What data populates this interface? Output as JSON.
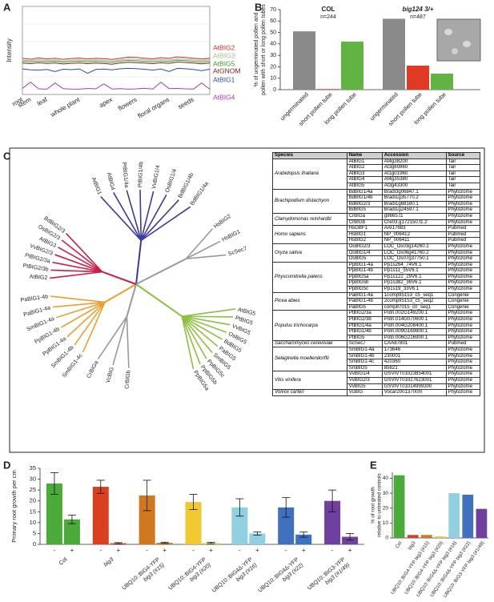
{
  "panel_labels": [
    "A",
    "B",
    "C",
    "D",
    "E"
  ],
  "chart_data": [
    {
      "type": "line",
      "ylabel": "Intensity",
      "ylim": [
        0,
        5000
      ],
      "categories": [
        "root",
        "stem",
        null,
        "leaf",
        null,
        null,
        null,
        "whole plant",
        null,
        null,
        null,
        "apex",
        null,
        null,
        "flowers",
        null,
        null,
        null,
        "floral organs",
        null,
        null,
        "seeds",
        null,
        null
      ],
      "series": [
        {
          "name": "AtBIG2",
          "color": "#d42a2a",
          "values": [
            2050,
            2000,
            2080,
            2020,
            2060,
            1990,
            2040,
            2070,
            2010,
            2050,
            2030,
            1980,
            2060,
            2120,
            2100,
            2060,
            2020,
            2090,
            2050,
            2130,
            2100,
            2060,
            2010,
            2060
          ]
        },
        {
          "name": "AtBIG3",
          "color": "#a8b890",
          "values": [
            1950,
            1920,
            1990,
            1930,
            1960,
            1900,
            1950,
            1970,
            1920,
            1960,
            1940,
            1890,
            1970,
            2010,
            1990,
            1960,
            1930,
            1990,
            1950,
            2020,
            2000,
            1960,
            1920,
            1970
          ]
        },
        {
          "name": "AtBIG5",
          "color": "#3a9a2a",
          "values": [
            1880,
            1850,
            1900,
            1860,
            1890,
            1830,
            1870,
            1890,
            1850,
            1880,
            1860,
            1820,
            1890,
            1930,
            1910,
            1880,
            1850,
            1900,
            1870,
            1940,
            1920,
            1880,
            1840,
            1880
          ]
        },
        {
          "name": "AtGNOM",
          "color": "#8a1a1a",
          "values": [
            1780,
            1750,
            1800,
            1760,
            1790,
            1730,
            1770,
            1790,
            1750,
            1780,
            1760,
            1720,
            1790,
            1830,
            1810,
            1780,
            1750,
            1800,
            1770,
            1840,
            1820,
            1780,
            1740,
            1780
          ]
        },
        {
          "name": "AtBIG1",
          "color": "#2a48c0",
          "values": [
            1450,
            1400,
            1380,
            1420,
            1300,
            1430,
            1410,
            1450,
            1200,
            1420,
            1440,
            1400,
            1460,
            1480,
            1470,
            1430,
            1380,
            1450,
            1300,
            1480,
            1460,
            1420,
            1350,
            1430
          ]
        },
        {
          "name": "AtBIG4",
          "color": "#a040a8",
          "values": [
            350,
            700,
            320,
            300,
            650,
            330,
            310,
            300,
            340,
            320,
            600,
            310,
            330,
            300,
            320,
            350,
            300,
            700,
            330,
            340,
            320,
            310,
            650,
            300
          ]
        }
      ]
    },
    {
      "type": "bar",
      "ylabel": [
        "% of ungerminated pollen and",
        "pollen with short or long pollen tubes"
      ],
      "ylim": [
        0,
        70
      ],
      "yticks": [
        0,
        10,
        20,
        30,
        40,
        50,
        60,
        70
      ],
      "categories": [
        "ungerminated",
        "short pollen tube",
        "long pollen tube"
      ],
      "colors": [
        "#8a8a8a",
        "#e03a24",
        "#62b442"
      ],
      "series": [
        {
          "name": "COL",
          "note": "n=244",
          "values": [
            51,
            0.5,
            42
          ]
        },
        {
          "name": "big124 3/+",
          "note": "n=487",
          "values": [
            62,
            21,
            14
          ]
        }
      ]
    },
    {
      "type": "bar",
      "ylabel": "Primary root growth per cm",
      "ylim": [
        0,
        35
      ],
      "yticks": [
        0,
        5,
        10,
        15,
        20,
        25,
        30,
        35
      ],
      "categories": [
        [
          "Col"
        ],
        [
          "big3"
        ],
        [
          "UBQ10::BIG4-YFP",
          "big3 (#15)"
        ],
        [
          "UBQ10::BIG4-YFP",
          "big3 (#20)"
        ],
        [
          "UBQ10::BIG4Δ-YFP",
          "big3 (#16)"
        ],
        [
          "UBQ10::BIG4Δ-YFP",
          "big3 (#22)"
        ],
        [
          "UBQ10::BIG3-YFP",
          "big3 (#1/49)"
        ]
      ],
      "colors": [
        "#4aaa3a",
        "#d84020",
        "#d07820",
        "#f0c830",
        "#90d0e0",
        "#4070c0",
        "#7040a0"
      ],
      "series": [
        {
          "name": "-",
          "values": [
            28,
            26.5,
            22.5,
            19.5,
            17,
            17,
            20
          ],
          "errors": [
            5,
            3,
            7,
            3.5,
            4,
            4.5,
            5
          ]
        },
        {
          "name": "+",
          "values": [
            11.5,
            0.5,
            0.7,
            0.6,
            5,
            4.5,
            3.5
          ],
          "errors": [
            2,
            0.3,
            0.3,
            0.3,
            0.7,
            1.2,
            1.5
          ]
        }
      ]
    },
    {
      "type": "bar",
      "ylabel": [
        "% of root growth",
        "relative to untreated controls"
      ],
      "ylim": [
        0,
        44
      ],
      "yticks": [
        0,
        10,
        20,
        30,
        40
      ],
      "categories": [
        "Col",
        "big3",
        "UBQ10::BIG4-YFP big3 (#15)",
        "UBQ10::BIG4-YFP big3 (#20)",
        "UBQ10::BIG4Δ-YFP big3 (#16)",
        "UBQ10::BIG4Δ-YFP big3 (#22)",
        "UBQ10::BIG3-YFP big3 (#1/49)"
      ],
      "colors": [
        "#4aaa3a",
        "#d84020",
        "#d07820",
        "#f0c830",
        "#90d0e0",
        "#4070c0",
        "#7040a0"
      ],
      "values": [
        42,
        2,
        2,
        1,
        30,
        29,
        19.5
      ]
    }
  ],
  "tree": {
    "clades": [
      {
        "color": "#3a3aa0",
        "leaves": [
          "AtBIG1",
          "AtBIG4",
          "PtBIG1/4a",
          "PtBIG1/4b",
          "VvBIG1/4",
          "OsBIG1/4",
          "BdBIG1/4b",
          "BdBIG1/4a"
        ]
      },
      {
        "color": "#999999",
        "leaves": [
          "HsBIG2",
          "HsBIG1",
          "ScSec7"
        ]
      },
      {
        "color": "#8cc040",
        "leaves": [
          "AtBIG5",
          "PtBIG5",
          "VvBIG5",
          "OsBIG5",
          "BdBIG5",
          "PaBIG5",
          "SmBIG5",
          "PpBIG5c",
          "PpBIG5b",
          "PpBIG5a"
        ]
      },
      {
        "color": "#999999",
        "leaves": [
          "CrBIGb",
          "VcBIG",
          "CrBIGa"
        ]
      },
      {
        "color": "#e8a030",
        "leaves": [
          "SmBIG1-4c",
          "SmBIG1-4b",
          "PpBIG1-4a",
          "PpBIG1-4b",
          "SmBIG1-4a",
          "PaBIG1-4a",
          "PaBIG1-4b"
        ]
      },
      {
        "color": "#c8204a",
        "leaves": [
          "AtBIG2",
          "PtBIG2/3b",
          "PtBIG2/3a",
          "VvBIG2/3",
          "AtBIG3",
          "OsBIG2/3",
          "BdBIG2/3"
        ]
      }
    ]
  },
  "table": {
    "header": [
      "Species",
      "Name",
      "Accession",
      "Source"
    ],
    "groups": [
      {
        "species": "Arabidopsis thaliana",
        "rows": [
          [
            "AtBIG1",
            "At4g38200",
            "Tair"
          ],
          [
            "AtBIG2",
            "At3g60860",
            "Tair"
          ],
          [
            "AtBIG3",
            "At1g01960",
            "Tair"
          ],
          [
            "AtBIG4",
            "At4g35380",
            "Tair"
          ],
          [
            "AtBIG5",
            "At3g43300",
            "Tair"
          ]
        ]
      },
      {
        "species": "Brachipodium distachyon",
        "rows": [
          [
            "BdBIG1/4a",
            "Bradi3g06847.1",
            "Phytozome"
          ],
          [
            "BdBIG1/4b",
            "Bradi1g35770.2",
            "Phytozome"
          ],
          [
            "BdBIG2/3",
            "Bradi1g68180.1",
            "Phytozome"
          ],
          [
            "BdBIG5",
            "Bradi1g24597.1",
            "Phytozome"
          ]
        ]
      },
      {
        "species": "Clamydomonas reinhardtii",
        "rows": [
          [
            "CrBIGa",
            "g9665.t1",
            "Phytozome"
          ],
          [
            "CrBIGb",
            "Cre03.g172150.t1.2",
            "Phytozome"
          ]
        ]
      },
      {
        "species": "Homo sapiens",
        "rows": [
          [
            "HsGBF1",
            "AAI17683",
            "Pubmed"
          ],
          [
            "HsBIG1",
            "NP_006412",
            "Pubmed"
          ],
          [
            "HsBIG2",
            "NP_006411",
            "Pubmed"
          ]
        ]
      },
      {
        "species": "Oryza sativa",
        "rows": [
          [
            "OsBIG2/3",
            "LOC_Os03g14260.1",
            "Phytozome"
          ],
          [
            "OsBIG1/4",
            "LOC_Os06g41760.2",
            "Phytozome"
          ],
          [
            "OsBIG5",
            "LOC_Os07g37750.1",
            "Phytozome"
          ]
        ]
      },
      {
        "species": "Physcomitrella patens",
        "rows": [
          [
            "PpBIG1-4a",
            "Pp1s264_74V6.1",
            "Phytozome"
          ],
          [
            "PpBIG1-4b",
            "Pp1s11_55V6.1",
            "Phytozome"
          ],
          [
            "PpBIG5a",
            "Pp1s122_29V6.1",
            "Phytozome"
          ],
          [
            "PpBIG5b",
            "Pp1s382_36V6.1",
            "Phytozome"
          ],
          [
            "PpBIG5c",
            "Pp1s19_33V6.1",
            "Phytozome"
          ]
        ]
      },
      {
        "species": "Picea abies",
        "rows": [
          [
            "PaBIG1-4a",
            "1comp95153_c5_seq1",
            "Congenie"
          ],
          [
            "PaBIG1-4b",
            "2comp95153_c5_seq2",
            "Congenie"
          ],
          [
            "PaBIG5",
            "comp87015_c0_seq1",
            "Congenie"
          ]
        ]
      },
      {
        "species": "Populus trichocarpa",
        "rows": [
          [
            "PtBIG2/3a",
            "Potri.002G149200.1",
            "Phytozome"
          ],
          [
            "PtBIG2/3b",
            "Potri.014G070600.1",
            "Phytozome"
          ],
          [
            "PtBIG1/4a",
            "Potri.004G208400.1",
            "Phytozome"
          ],
          [
            "PtBIG1/4b",
            "Potri.009G169800.1",
            "Phytozome"
          ],
          [
            "PtBIG5",
            "Potri.006G216900.1",
            "Phytozome"
          ]
        ]
      },
      {
        "species": "Saccharomyces cerevisiae",
        "rows": [
          [
            "ScSec7",
            "CAA87801",
            "Pubmed"
          ]
        ]
      },
      {
        "species": "Selaginella moellendorffii",
        "rows": [
          [
            "SmBIG1-4a",
            "173646",
            "Phytozome"
          ],
          [
            "SmBIG1-4b",
            "230001",
            "Phytozome"
          ],
          [
            "SmBIG1-4c",
            "420360",
            "Phytozome"
          ],
          [
            "SmBIG5",
            "85621",
            "Phytozome"
          ]
        ]
      },
      {
        "species": "Vitis vinifera",
        "rows": [
          [
            "VvBIG1/4",
            "GSVIVT01023854001",
            "Phytozome"
          ],
          [
            "VvBIG2/3",
            "GSVIVT01027623001",
            "Phytozome"
          ],
          [
            "VvBIG5",
            "GSVIVT01014999300",
            "Phytozome"
          ]
        ]
      },
      {
        "species": "Volvox carteri",
        "rows": [
          [
            "VcBIG",
            "Vocar20013700m",
            "Phytozome"
          ]
        ]
      }
    ]
  }
}
